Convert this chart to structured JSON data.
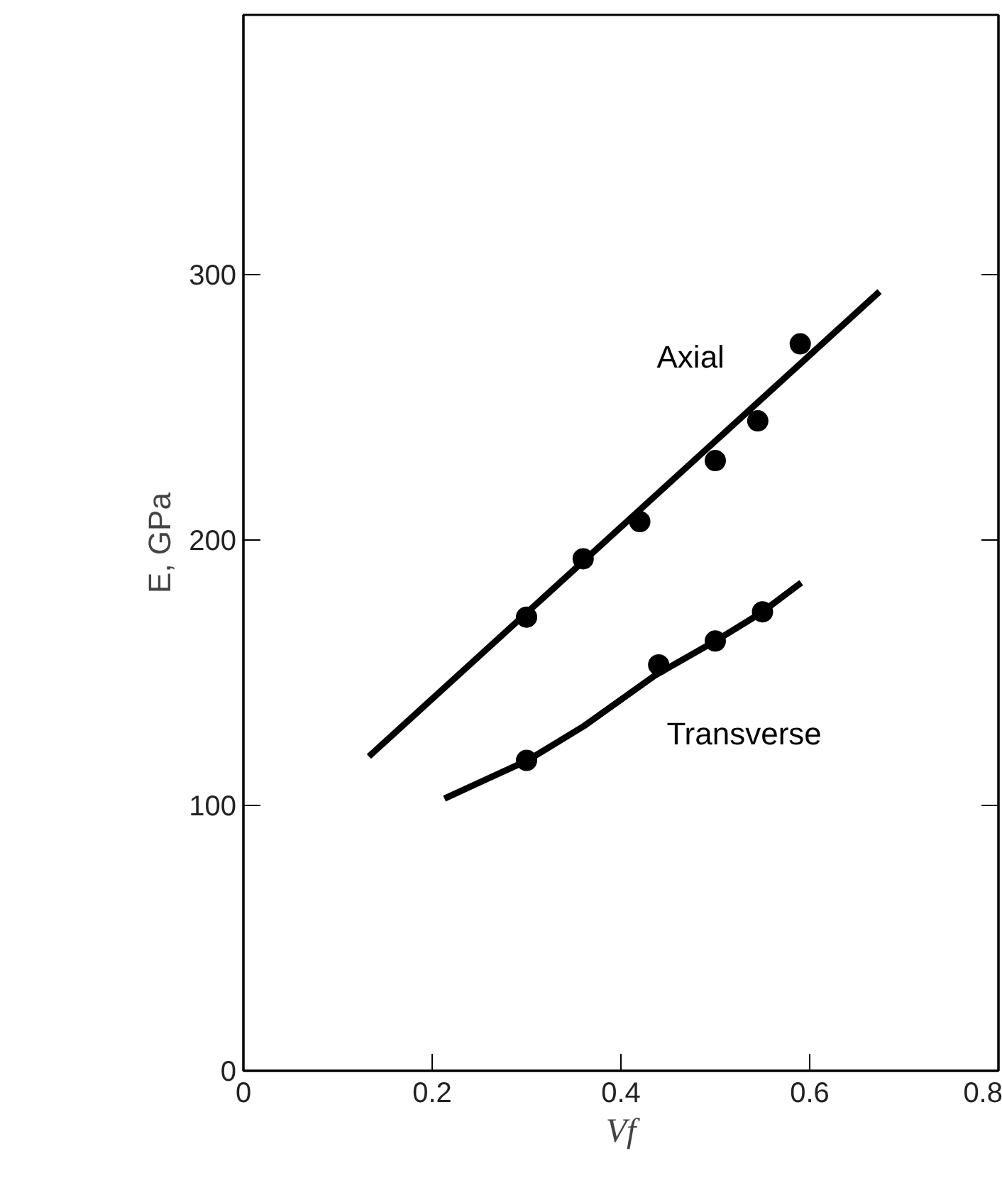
{
  "chart_data": {
    "type": "scatter",
    "xlabel": "Vf",
    "ylabel": "E, GPa",
    "xlim": [
      0,
      0.8
    ],
    "ylim": [
      0,
      398
    ],
    "xticks": [
      0,
      0.2,
      0.4,
      0.6,
      0.8
    ],
    "yticks": [
      0,
      100,
      200,
      300
    ],
    "grid": false,
    "series": [
      {
        "color": "#000000",
        "marker": "circle",
        "x": [
          0.3,
          0.36,
          0.42,
          0.5,
          0.545,
          0.59
        ],
        "values": [
          171,
          193,
          207,
          230,
          245,
          274
        ]
      },
      {
        "type": "line",
        "name": "Axial",
        "color": "#000000",
        "x": [
          0.133,
          0.674
        ],
        "values": [
          118.5,
          293.7
        ]
      },
      {
        "color": "#000000",
        "marker": "circle",
        "x": [
          0.3,
          0.44,
          0.5,
          0.55
        ],
        "values": [
          117,
          153,
          162,
          173
        ]
      },
      {
        "type": "line",
        "name": "Transverse",
        "color": "#000000",
        "x": [
          0.213,
          0.252,
          0.301,
          0.361,
          0.436,
          0.5,
          0.548,
          0.591
        ],
        "values": [
          102.6,
          109,
          117,
          130,
          149,
          162,
          172.5,
          184
        ]
      }
    ]
  }
}
